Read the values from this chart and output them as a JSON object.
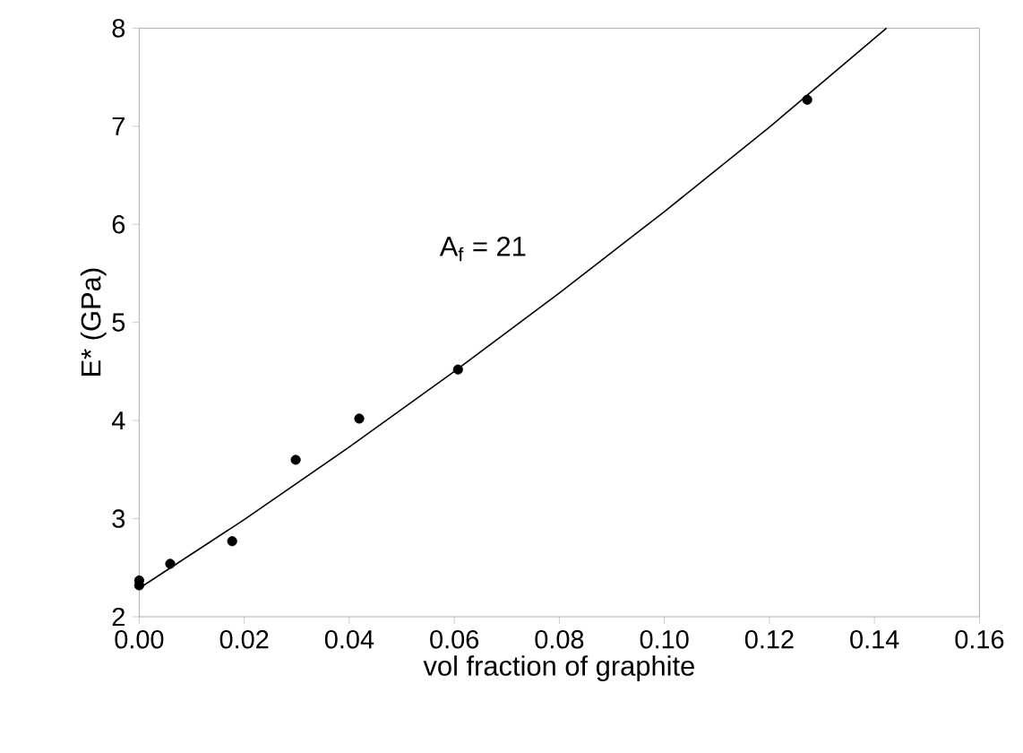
{
  "chart_data": {
    "type": "scatter",
    "xlabel": "vol fraction of graphite",
    "ylabel": "E* (GPa)",
    "annotations": [
      "A$_{f}$ = 21"
    ],
    "series": [
      {
        "color": "#000000",
        "marker": "circle",
        "x": [
          0,
          0,
          0.0059,
          0.0177,
          0.0298,
          0.0419,
          0.0607,
          0.1272
        ],
        "values": [
          2.32,
          2.37,
          2.54,
          2.77,
          3.6,
          4.02,
          4.52,
          7.27
        ]
      },
      {
        "type": "line",
        "color": "#000000",
        "marker": "none",
        "line_style": "solid",
        "x": [
          0,
          0.02,
          0.04,
          0.06,
          0.08,
          0.1,
          0.12,
          0.1423
        ],
        "values": [
          2.29,
          2.99,
          3.73,
          4.5,
          5.3,
          6.13,
          6.99,
          8.0
        ]
      }
    ],
    "xlim": [
      0,
      0.16
    ],
    "ylim": [
      2,
      8
    ],
    "xticks": [
      {
        "value": 0,
        "label": "0.00"
      },
      {
        "value": 0.02,
        "label": "0.02"
      },
      {
        "value": 0.04,
        "label": "0.04"
      },
      {
        "value": 0.06,
        "label": "0.06"
      },
      {
        "value": 0.08,
        "label": "0.08"
      },
      {
        "value": 0.1,
        "label": "0.10"
      },
      {
        "value": 0.12,
        "label": "0.12"
      },
      {
        "value": 0.14,
        "label": "0.14"
      },
      {
        "value": 0.16,
        "label": "0.16"
      }
    ],
    "yticks": [
      2,
      3,
      4,
      5,
      6,
      7,
      8
    ],
    "grid": false
  }
}
